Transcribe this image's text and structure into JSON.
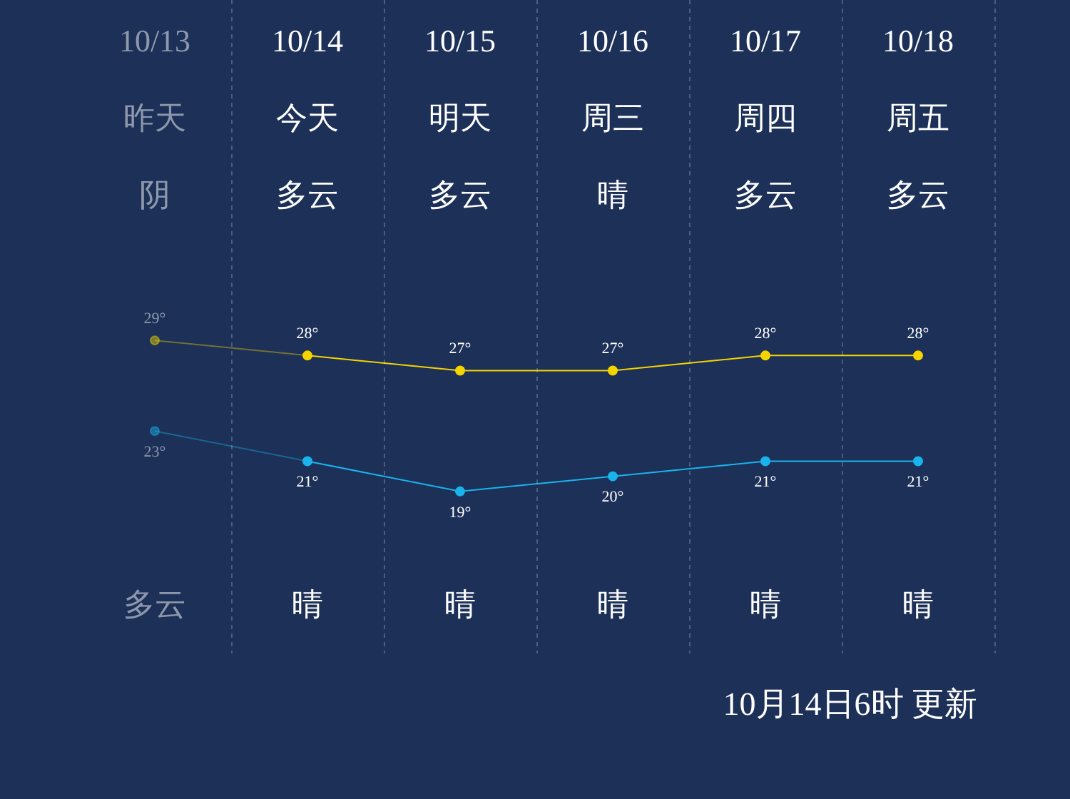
{
  "chart_data": {
    "type": "line",
    "categories": [
      "10/13",
      "10/14",
      "10/15",
      "10/16",
      "10/17",
      "10/18"
    ],
    "series": [
      {
        "color": "#f5d400",
        "values": [
          29,
          28,
          27,
          27,
          28,
          28
        ],
        "value_labels": [
          "29°",
          "28°",
          "27°",
          "27°",
          "28°",
          "28°"
        ]
      },
      {
        "color": "#1ab4ec",
        "values": [
          23,
          21,
          19,
          20,
          21,
          21
        ],
        "value_labels": [
          "23°",
          "21°",
          "19°",
          "20°",
          "21°",
          "21°"
        ]
      }
    ],
    "marker": "circle",
    "grid": "x",
    "annotations": [
      "昨天",
      "今天",
      "明天",
      "周三",
      "周四",
      "周五",
      "阴",
      "多云",
      "多云",
      "晴",
      "多云",
      "多云",
      "多云",
      "晴",
      "晴",
      "晴",
      "晴",
      "晴",
      "10月14日6时 更新"
    ]
  }
}
